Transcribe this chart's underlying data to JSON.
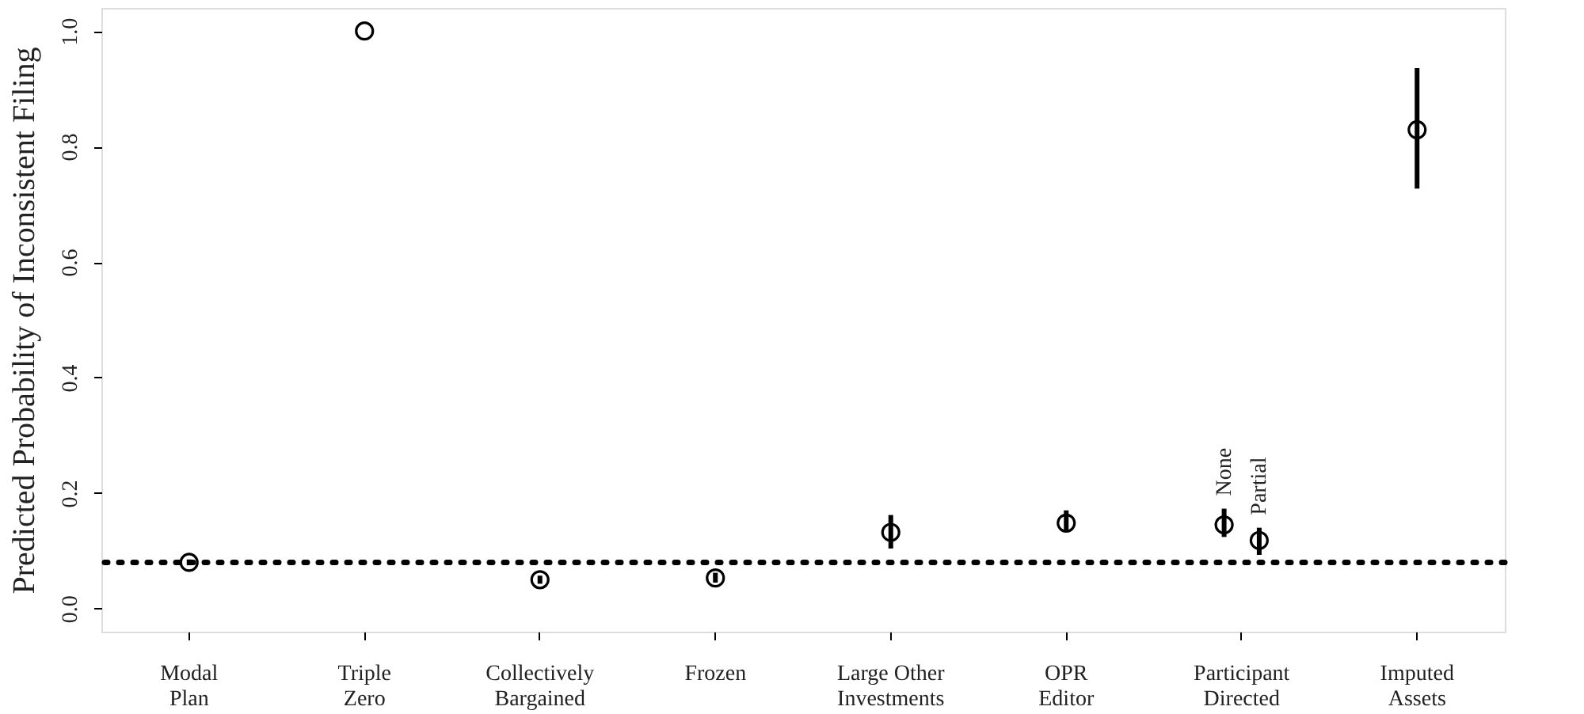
{
  "chart_data": {
    "type": "scatter",
    "ylabel": "Predicted Probability of Inconsistent Filing",
    "categories": [
      "Modal\nPlan",
      "Triple\nZero",
      "Collectively\nBargained",
      "Frozen",
      "Large Other\nInvestments",
      "OPR\nEditor",
      "Participant\nDirected",
      "Imputed\nAssets"
    ],
    "series": [
      {
        "color": "#000000",
        "values": [
          0.08,
          1.0,
          0.05,
          0.053,
          0.132,
          0.148,
          null,
          0.829
        ],
        "errors": [
          [
            0.075,
            0.085
          ],
          null,
          [
            0.043,
            0.057
          ],
          [
            0.045,
            0.062
          ],
          [
            0.104,
            0.162
          ],
          [
            0.133,
            0.17
          ],
          null,
          [
            0.727,
            0.936
          ]
        ]
      },
      {
        "name": "None",
        "color": "#000000",
        "x": [
          "Participant\nDirected"
        ],
        "values": [
          0.145
        ],
        "errors": [
          [
            0.124,
            0.173
          ]
        ]
      },
      {
        "name": "Partial",
        "color": "#000000",
        "x": [
          "Participant\nDirected"
        ],
        "values": [
          0.118
        ],
        "errors": [
          [
            0.093,
            0.14
          ]
        ]
      }
    ],
    "marker": "circle",
    "grid": false,
    "legend": false,
    "ylim": [
      -0.04,
      1.04
    ],
    "yticks": [
      {
        "value": 0,
        "label": "0.0"
      },
      0.2,
      0.4,
      0.6,
      0.8,
      {
        "value": 1,
        "label": "1.0"
      }
    ],
    "ref_lines": [
      {
        "axis": "y",
        "value": 0.08,
        "line_style": "dotted",
        "color": "#000000"
      }
    ]
  }
}
